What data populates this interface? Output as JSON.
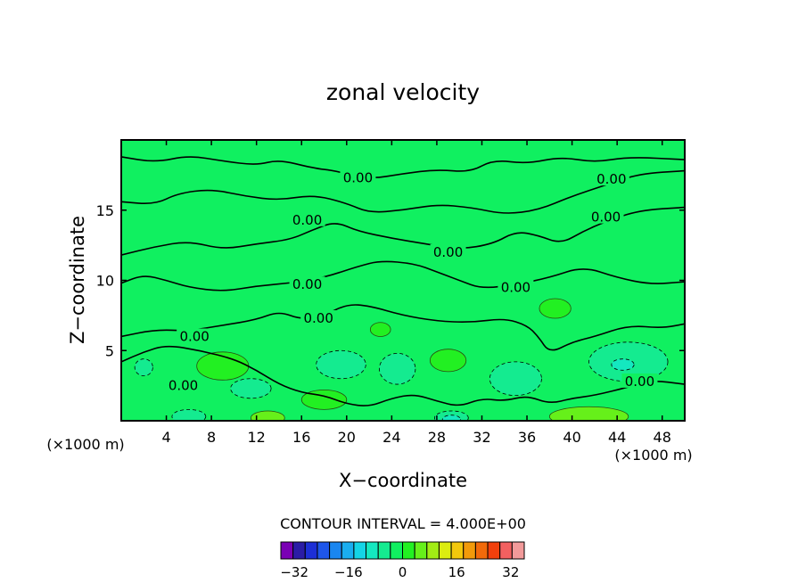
{
  "chart_data": {
    "type": "heatmap",
    "subtype": "filled-contour",
    "title": "zonal velocity",
    "xlabel": "X−coordinate",
    "ylabel": "Z−coordinate",
    "x_unit_left": "(×1000 m)",
    "x_unit_right": "(×1000 m)",
    "xlim": [
      0,
      50
    ],
    "ylim": [
      0,
      20
    ],
    "x_ticks": [
      4,
      8,
      12,
      16,
      20,
      24,
      28,
      32,
      36,
      40,
      44,
      48
    ],
    "y_ticks": [
      5,
      10,
      15
    ],
    "contour_interval_text": "CONTOUR INTERVAL = 4.000E+00",
    "contour_label": "0.00",
    "contour_label_positions": [
      {
        "x": 21.0,
        "z": 17.3
      },
      {
        "x": 16.5,
        "z": 14.3
      },
      {
        "x": 29.0,
        "z": 12.0
      },
      {
        "x": 16.5,
        "z": 9.7
      },
      {
        "x": 35.0,
        "z": 9.5
      },
      {
        "x": 17.5,
        "z": 7.3
      },
      {
        "x": 6.5,
        "z": 6.0
      },
      {
        "x": 43.5,
        "z": 17.2
      },
      {
        "x": 43.0,
        "z": 14.5
      },
      {
        "x": 5.5,
        "z": 2.5
      },
      {
        "x": 46.0,
        "z": 2.8
      }
    ],
    "colorbar": {
      "min": -36,
      "max": 36,
      "step": 4,
      "tick_labels": [
        "−32",
        "−16",
        "0",
        "16",
        "32"
      ],
      "tick_values": [
        -32,
        -16,
        0,
        16,
        32
      ],
      "colors": [
        "#7a00b4",
        "#2b1ca6",
        "#1d2fd6",
        "#1e56ea",
        "#1a86f0",
        "#1aaef0",
        "#14d4e6",
        "#14e8c0",
        "#14eb90",
        "#10f060",
        "#22f022",
        "#66f01a",
        "#a2ec14",
        "#dcec10",
        "#f2c80c",
        "#f29a0a",
        "#f26a0a",
        "#f2400c",
        "#f26060",
        "#f29a9a"
      ]
    },
    "regions": [
      {
        "level": 4,
        "cx": 9.0,
        "cz": 3.9,
        "rx": 2.3,
        "rz": 1.0
      },
      {
        "level": 4,
        "cx": 23.0,
        "cz": 6.5,
        "rx": 0.9,
        "rz": 0.5
      },
      {
        "level": 4,
        "cx": 29.0,
        "cz": 4.3,
        "rx": 1.6,
        "rz": 0.8
      },
      {
        "level": 4,
        "cx": 38.5,
        "cz": 8.0,
        "rx": 1.4,
        "rz": 0.7
      },
      {
        "level": 4,
        "cx": 18.0,
        "cz": 1.5,
        "rx": 2.0,
        "rz": 0.7
      },
      {
        "level": 8,
        "cx": 41.5,
        "cz": 0.3,
        "rx": 3.5,
        "rz": 0.7
      },
      {
        "level": 8,
        "cx": 13.0,
        "cz": 0.2,
        "rx": 1.5,
        "rz": 0.5
      },
      {
        "level": -4,
        "cx": 19.5,
        "cz": 4.0,
        "rx": 2.2,
        "rz": 1.0
      },
      {
        "level": -4,
        "cx": 24.5,
        "cz": 3.7,
        "rx": 1.6,
        "rz": 1.1
      },
      {
        "level": -4,
        "cx": 35.0,
        "cz": 3.0,
        "rx": 2.3,
        "rz": 1.2
      },
      {
        "level": -4,
        "cx": 45.0,
        "cz": 4.2,
        "rx": 3.5,
        "rz": 1.4
      },
      {
        "level": -4,
        "cx": 11.5,
        "cz": 2.3,
        "rx": 1.8,
        "rz": 0.7
      },
      {
        "level": -4,
        "cx": 29.3,
        "cz": 0.2,
        "rx": 1.5,
        "rz": 0.5
      },
      {
        "level": -8,
        "cx": 44.5,
        "cz": 4.0,
        "rx": 1.0,
        "rz": 0.4
      },
      {
        "level": -8,
        "cx": 29.3,
        "cz": 0.1,
        "rx": 0.8,
        "rz": 0.3
      },
      {
        "level": -4,
        "cx": 2.0,
        "cz": 3.8,
        "rx": 0.8,
        "rz": 0.6
      },
      {
        "level": -4,
        "cx": 6.0,
        "cz": 0.3,
        "rx": 1.5,
        "rz": 0.5
      }
    ],
    "zero_contours": [
      [
        [
          0,
          18.8
        ],
        [
          3,
          18.4
        ],
        [
          6,
          18.9
        ],
        [
          9,
          18.5
        ],
        [
          12,
          18.2
        ],
        [
          14,
          18.6
        ],
        [
          17,
          18.0
        ],
        [
          19,
          17.8
        ],
        [
          22,
          17.2
        ],
        [
          25,
          17.6
        ],
        [
          28,
          17.9
        ],
        [
          31,
          17.7
        ],
        [
          33,
          18.6
        ],
        [
          36,
          18.3
        ],
        [
          39,
          18.8
        ],
        [
          42,
          18.4
        ],
        [
          45,
          18.8
        ],
        [
          50,
          18.6
        ]
      ],
      [
        [
          0,
          15.6
        ],
        [
          3,
          15.4
        ],
        [
          5,
          16.2
        ],
        [
          8,
          16.5
        ],
        [
          11,
          16.0
        ],
        [
          14,
          15.7
        ],
        [
          17,
          16.1
        ],
        [
          20,
          15.5
        ],
        [
          22,
          14.8
        ],
        [
          25,
          15.0
        ],
        [
          28,
          15.4
        ],
        [
          31,
          15.2
        ],
        [
          34,
          14.7
        ],
        [
          37,
          15.0
        ],
        [
          40,
          16.0
        ],
        [
          43,
          16.8
        ],
        [
          46,
          17.6
        ],
        [
          50,
          17.8
        ]
      ],
      [
        [
          0,
          11.8
        ],
        [
          3,
          12.4
        ],
        [
          6,
          12.8
        ],
        [
          9,
          12.2
        ],
        [
          12,
          12.6
        ],
        [
          15,
          12.9
        ],
        [
          17,
          13.6
        ],
        [
          19,
          14.2
        ],
        [
          21,
          13.5
        ],
        [
          24,
          13.0
        ],
        [
          27,
          12.6
        ],
        [
          30,
          12.2
        ],
        [
          33,
          12.6
        ],
        [
          35,
          13.5
        ],
        [
          37,
          13.2
        ],
        [
          39,
          12.6
        ],
        [
          41,
          13.5
        ],
        [
          43,
          14.2
        ],
        [
          46,
          15.0
        ],
        [
          50,
          15.2
        ]
      ],
      [
        [
          0,
          9.8
        ],
        [
          2,
          10.4
        ],
        [
          4,
          10.0
        ],
        [
          6,
          9.5
        ],
        [
          9,
          9.2
        ],
        [
          12,
          9.6
        ],
        [
          15,
          9.8
        ],
        [
          18,
          10.2
        ],
        [
          21,
          11.0
        ],
        [
          23,
          11.4
        ],
        [
          26,
          11.2
        ],
        [
          28,
          10.6
        ],
        [
          30,
          10.0
        ],
        [
          32,
          9.4
        ],
        [
          35,
          9.7
        ],
        [
          38,
          10.2
        ],
        [
          41,
          11.0
        ],
        [
          44,
          10.2
        ],
        [
          47,
          9.7
        ],
        [
          50,
          9.9
        ]
      ],
      [
        [
          0,
          6.0
        ],
        [
          3,
          6.5
        ],
        [
          6,
          6.4
        ],
        [
          9,
          6.8
        ],
        [
          12,
          7.2
        ],
        [
          14,
          7.8
        ],
        [
          16,
          7.2
        ],
        [
          18,
          7.5
        ],
        [
          20,
          8.3
        ],
        [
          22,
          8.2
        ],
        [
          25,
          7.5
        ],
        [
          28,
          7.1
        ],
        [
          31,
          7.0
        ],
        [
          34,
          7.3
        ],
        [
          36,
          6.8
        ],
        [
          37,
          6.0
        ],
        [
          38,
          4.8
        ],
        [
          40,
          5.6
        ],
        [
          42,
          6.0
        ],
        [
          45,
          6.8
        ],
        [
          48,
          6.6
        ],
        [
          50,
          6.9
        ]
      ],
      [
        [
          0,
          4.2
        ],
        [
          2,
          4.9
        ],
        [
          4,
          5.4
        ],
        [
          7,
          5.0
        ],
        [
          10,
          4.4
        ],
        [
          12,
          3.6
        ],
        [
          14,
          2.6
        ],
        [
          16,
          2.0
        ],
        [
          18,
          1.8
        ],
        [
          20,
          1.2
        ],
        [
          22,
          1.0
        ],
        [
          24,
          1.6
        ],
        [
          26,
          1.9
        ],
        [
          28,
          1.4
        ],
        [
          30,
          1.0
        ],
        [
          32,
          1.6
        ],
        [
          34,
          1.4
        ],
        [
          36,
          1.8
        ],
        [
          38,
          1.2
        ],
        [
          40,
          1.6
        ],
        [
          42,
          1.8
        ],
        [
          45,
          2.4
        ],
        [
          47,
          2.9
        ],
        [
          50,
          2.6
        ]
      ]
    ]
  }
}
